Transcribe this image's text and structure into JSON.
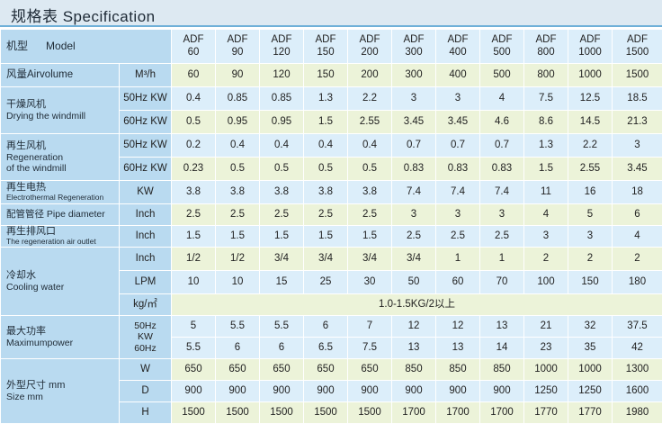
{
  "header": {
    "title": "规格表 Specification"
  },
  "model_row": {
    "label_cn": "机型",
    "label_en": "Model",
    "models": [
      "ADF 60",
      "ADF 90",
      "ADF 120",
      "ADF 150",
      "ADF 200",
      "ADF 300",
      "ADF 400",
      "ADF 500",
      "ADF 800",
      "ADF 1000",
      "ADF 1500"
    ]
  },
  "rows": {
    "airvolume": {
      "label": "风量Airvolume",
      "unit": "M³/h",
      "values": [
        "60",
        "90",
        "120",
        "150",
        "200",
        "300",
        "400",
        "500",
        "800",
        "1000",
        "1500"
      ]
    },
    "drying": {
      "label_cn": "干燥风机",
      "label_en": "Drying the windmill",
      "r50": {
        "unit": "50Hz KW",
        "values": [
          "0.4",
          "0.85",
          "0.85",
          "1.3",
          "2.2",
          "3",
          "3",
          "4",
          "7.5",
          "12.5",
          "18.5"
        ]
      },
      "r60": {
        "unit": "60Hz KW",
        "values": [
          "0.5",
          "0.95",
          "0.95",
          "1.5",
          "2.55",
          "3.45",
          "3.45",
          "4.6",
          "8.6",
          "14.5",
          "21.3"
        ]
      }
    },
    "regen_fan": {
      "label_cn": "再生风机",
      "label_en1": "Regeneration",
      "label_en2": "of the windmill",
      "r50": {
        "unit": "50Hz KW",
        "values": [
          "0.2",
          "0.4",
          "0.4",
          "0.4",
          "0.4",
          "0.7",
          "0.7",
          "0.7",
          "1.3",
          "2.2",
          "3"
        ]
      },
      "r60": {
        "unit": "60Hz KW",
        "values": [
          "0.23",
          "0.5",
          "0.5",
          "0.5",
          "0.5",
          "0.83",
          "0.83",
          "0.83",
          "1.5",
          "2.55",
          "3.45"
        ]
      }
    },
    "heater": {
      "label_cn": "再生电热",
      "label_en": "Electrothermal Regeneration",
      "unit": "KW",
      "values": [
        "3.8",
        "3.8",
        "3.8",
        "3.8",
        "3.8",
        "7.4",
        "7.4",
        "7.4",
        "11",
        "16",
        "18"
      ]
    },
    "pipe": {
      "label": "配管管径 Pipe diameter",
      "unit": "Inch",
      "values": [
        "2.5",
        "2.5",
        "2.5",
        "2.5",
        "2.5",
        "3",
        "3",
        "3",
        "4",
        "5",
        "6"
      ]
    },
    "outlet": {
      "label_cn": "再生排风口",
      "label_en": "The regeneration air outlet",
      "unit": "Inch",
      "values": [
        "1.5",
        "1.5",
        "1.5",
        "1.5",
        "1.5",
        "2.5",
        "2.5",
        "2.5",
        "3",
        "3",
        "4"
      ]
    },
    "cooling": {
      "label_cn": "冷却水",
      "label_en": "Cooling water",
      "inch": {
        "unit": "Inch",
        "values": [
          "1/2",
          "1/2",
          "3/4",
          "3/4",
          "3/4",
          "3/4",
          "1",
          "1",
          "2",
          "2",
          "2"
        ]
      },
      "lpm": {
        "unit": "LPM",
        "values": [
          "10",
          "10",
          "15",
          "25",
          "30",
          "50",
          "60",
          "70",
          "100",
          "150",
          "180"
        ]
      },
      "pressure": {
        "unit": "kg/㎡",
        "value": "1.0-1.5KG/2以上"
      }
    },
    "max_power": {
      "label_cn": "最大功率",
      "label_en": "Maximumpower",
      "hz50": "50Hz",
      "hz60": "60Hz",
      "kw": "KW",
      "r50": [
        "5",
        "5.5",
        "5.5",
        "6",
        "7",
        "12",
        "12",
        "13",
        "21",
        "32",
        "37.5"
      ],
      "r60": [
        "5.5",
        "6",
        "6",
        "6.5",
        "7.5",
        "13",
        "13",
        "14",
        "23",
        "35",
        "42"
      ]
    },
    "size": {
      "label_cn": "外型尺寸 mm",
      "label_en": "Size mm",
      "W": {
        "unit": "W",
        "values": [
          "650",
          "650",
          "650",
          "650",
          "650",
          "850",
          "850",
          "850",
          "1000",
          "1000",
          "1300"
        ]
      },
      "D": {
        "unit": "D",
        "values": [
          "900",
          "900",
          "900",
          "900",
          "900",
          "900",
          "900",
          "900",
          "1250",
          "1250",
          "1600"
        ]
      },
      "H": {
        "unit": "H",
        "values": [
          "1500",
          "1500",
          "1500",
          "1500",
          "1500",
          "1700",
          "1700",
          "1700",
          "1770",
          "1770",
          "1980"
        ]
      }
    }
  }
}
